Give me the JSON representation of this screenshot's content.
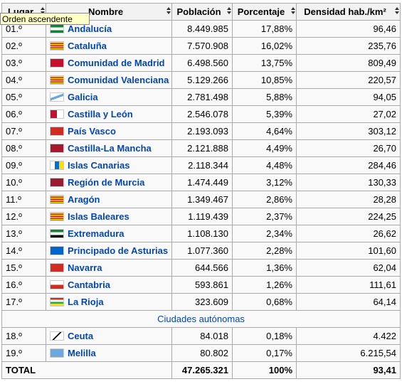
{
  "tooltip": "Orden ascendente",
  "table": {
    "headers": [
      "Lugar",
      "Nombre",
      "Población",
      "Porcentaje",
      "Densidad hab./km²"
    ],
    "rows": [
      [
        "01.º",
        "Andalucía",
        "8.449.985",
        "17,88%",
        "96,46"
      ],
      [
        "02.º",
        "Cataluña",
        "7.570.908",
        "16,02%",
        "235,76"
      ],
      [
        "03.º",
        "Comunidad de Madrid",
        "6.498.560",
        "13,75%",
        "809,49"
      ],
      [
        "04.º",
        "Comunidad Valenciana",
        "5.129.266",
        "10,85%",
        "220,57"
      ],
      [
        "05.º",
        "Galicia",
        "2.781.498",
        "5,88%",
        "94,05"
      ],
      [
        "06.º",
        "Castilla y León",
        "2.546.078",
        "5,39%",
        "27,02"
      ],
      [
        "07.º",
        "País Vasco",
        "2.193.093",
        "4,64%",
        "303,12"
      ],
      [
        "08.º",
        "Castilla-La Mancha",
        "2.121.888",
        "4,49%",
        "26,70"
      ],
      [
        "09.º",
        "Islas Canarias",
        "2.118.344",
        "4,48%",
        "284,46"
      ],
      [
        "10.º",
        "Región de Murcia",
        "1.474.449",
        "3,12%",
        "130,33"
      ],
      [
        "11.º",
        "Aragón",
        "1.349.467",
        "2,86%",
        "28,28"
      ],
      [
        "12.º",
        "Islas Baleares",
        "1.119.439",
        "2,37%",
        "224,25"
      ],
      [
        "13.º",
        "Extremadura",
        "1.108.130",
        "2,34%",
        "26,62"
      ],
      [
        "14.º",
        "Principado de Asturias",
        "1.077.360",
        "2,28%",
        "101,60"
      ],
      [
        "15.º",
        "Navarra",
        "644.566",
        "1,36%",
        "62,04"
      ],
      [
        "16.º",
        "Cantabria",
        "593.861",
        "1,26%",
        "111,61"
      ],
      [
        "17.º",
        "La Rioja",
        "323.609",
        "0,68%",
        "64,14"
      ]
    ],
    "section": "Ciudades autónomas",
    "rows2": [
      [
        "18.º",
        "Ceuta",
        "84.018",
        "0,18%",
        "4.422"
      ],
      [
        "19.º",
        "Melilla",
        "80.802",
        "0,17%",
        "6.215,54"
      ]
    ],
    "total": [
      "TOTAL",
      "47.265.321",
      "100%",
      "93,41"
    ]
  }
}
